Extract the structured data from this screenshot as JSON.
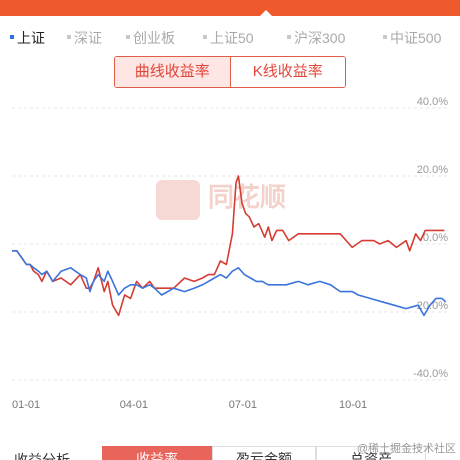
{
  "index_tabs": [
    {
      "label": "上证",
      "active": true
    },
    {
      "label": "深证",
      "active": false
    },
    {
      "label": "创业板",
      "active": false
    },
    {
      "label": "上证50",
      "active": false
    },
    {
      "label": "沪深300",
      "active": false
    },
    {
      "label": "中证500",
      "active": false
    }
  ],
  "mode_toggle": {
    "curve_label": "曲线收益率",
    "kline_label": "K线收益率"
  },
  "watermark": {
    "text": "同花顺"
  },
  "bottom": {
    "label": "收益分析",
    "tabs": [
      "收益率",
      "盈亏金额",
      "总资产"
    ]
  },
  "footer_watermark": "@稀土掘金技术社区",
  "colors": {
    "brand": "#ee5a2e",
    "portfolio_line": "#d63c34",
    "index_line": "#3b74db",
    "active_tab_dot": "#2f6fe0"
  },
  "chart_data": {
    "type": "line",
    "x_tick_labels": [
      "01-01",
      "04-01",
      "07-01",
      "10-01"
    ],
    "y_tick_labels": [
      "40.0%",
      "20.0%",
      "0.0%",
      "-20.0%",
      "-40.0%"
    ],
    "ylim": [
      -40,
      40
    ],
    "xlim": [
      1,
      365
    ],
    "grid": true,
    "series": [
      {
        "key": "portfolio",
        "color": "#d63c34",
        "x": [
          1,
          5,
          9,
          13,
          16,
          19,
          23,
          26,
          30,
          35,
          42,
          50,
          58,
          63,
          66,
          69,
          73,
          78,
          81,
          85,
          90,
          95,
          100,
          105,
          110,
          116,
          120,
          126,
          136,
          145,
          153,
          160,
          165,
          170,
          175,
          180,
          185,
          188,
          190,
          193,
          196,
          199,
          203,
          207,
          212,
          215,
          218,
          222,
          227,
          232,
          240,
          248,
          258,
          267,
          275,
          285,
          293,
          303,
          308,
          315,
          322,
          330,
          333,
          338,
          342,
          346,
          350,
          356,
          362
        ],
        "y": [
          -2,
          -2,
          -4,
          -6,
          -6,
          -8,
          -9,
          -11,
          -8,
          -11,
          -10,
          -12,
          -9,
          -13,
          -13,
          -11,
          -7,
          -14,
          -11,
          -18,
          -21,
          -15,
          -16,
          -11,
          -13,
          -11,
          -13,
          -13,
          -13,
          -10,
          -11,
          -10,
          -9,
          -9,
          -5,
          -6,
          3,
          18,
          20,
          12,
          9,
          8,
          5,
          6,
          2,
          5,
          1,
          4,
          4,
          1,
          3,
          3,
          3,
          3,
          3,
          -1,
          1,
          1,
          0,
          1,
          -1,
          1,
          -2,
          3,
          1,
          4,
          4,
          4,
          4
        ]
      },
      {
        "key": "index",
        "color": "#3b74db",
        "x": [
          1,
          5,
          9,
          13,
          16,
          19,
          23,
          26,
          30,
          35,
          42,
          50,
          58,
          63,
          66,
          69,
          73,
          78,
          81,
          85,
          90,
          95,
          100,
          105,
          110,
          116,
          120,
          126,
          136,
          145,
          153,
          160,
          165,
          170,
          175,
          180,
          185,
          190,
          195,
          200,
          205,
          210,
          215,
          222,
          230,
          240,
          248,
          258,
          267,
          275,
          285,
          290,
          300,
          310,
          320,
          330,
          340,
          345,
          350,
          355,
          360,
          363
        ],
        "y": [
          -2,
          -2,
          -4,
          -6,
          -6,
          -7,
          -8,
          -9,
          -8,
          -11,
          -8,
          -7,
          -9,
          -10,
          -14,
          -11,
          -9,
          -11,
          -8,
          -11,
          -15,
          -13,
          -12,
          -12,
          -13,
          -12,
          -13,
          -15,
          -13,
          -14,
          -13,
          -12,
          -11,
          -10,
          -9,
          -10,
          -8,
          -7,
          -9,
          -10,
          -11,
          -11,
          -12,
          -12,
          -12,
          -11,
          -12,
          -11,
          -12,
          -14,
          -14,
          -15,
          -16,
          -17,
          -18,
          -19,
          -18,
          -21,
          -18,
          -16,
          -16,
          -17
        ]
      }
    ]
  }
}
